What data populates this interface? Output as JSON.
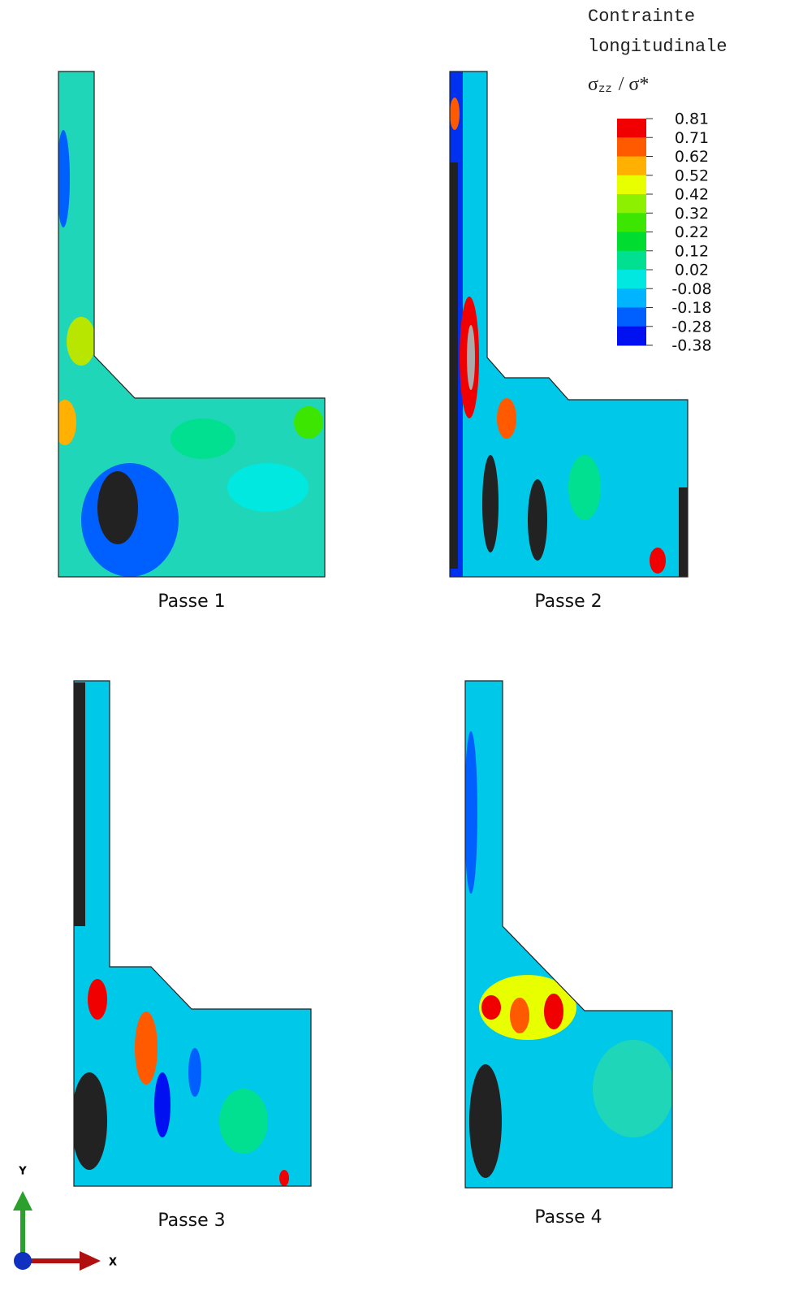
{
  "legend": {
    "title_line1": "Contrainte",
    "title_line2": "longitudinale",
    "quantity": "σ",
    "subscript": "zz",
    "ratio": "/ σ*",
    "levels": [
      "0.81",
      "0.71",
      "0.62",
      "0.52",
      "0.42",
      "0.32",
      "0.22",
      "0.12",
      "0.02",
      "-0.08",
      "-0.18",
      "-0.28",
      "-0.38"
    ],
    "colors": [
      "#f00000",
      "#ff5a00",
      "#ffb000",
      "#e8ff00",
      "#8cf000",
      "#3ce600",
      "#00dc30",
      "#00e090",
      "#00e8e0",
      "#00b4ff",
      "#0060ff",
      "#0010f0"
    ]
  },
  "panels": [
    {
      "caption": "Passe 1"
    },
    {
      "caption": "Passe 2"
    },
    {
      "caption": "Passe 3"
    },
    {
      "caption": "Passe 4"
    }
  ],
  "triad": {
    "y_label": "Y",
    "x_label": "X"
  }
}
